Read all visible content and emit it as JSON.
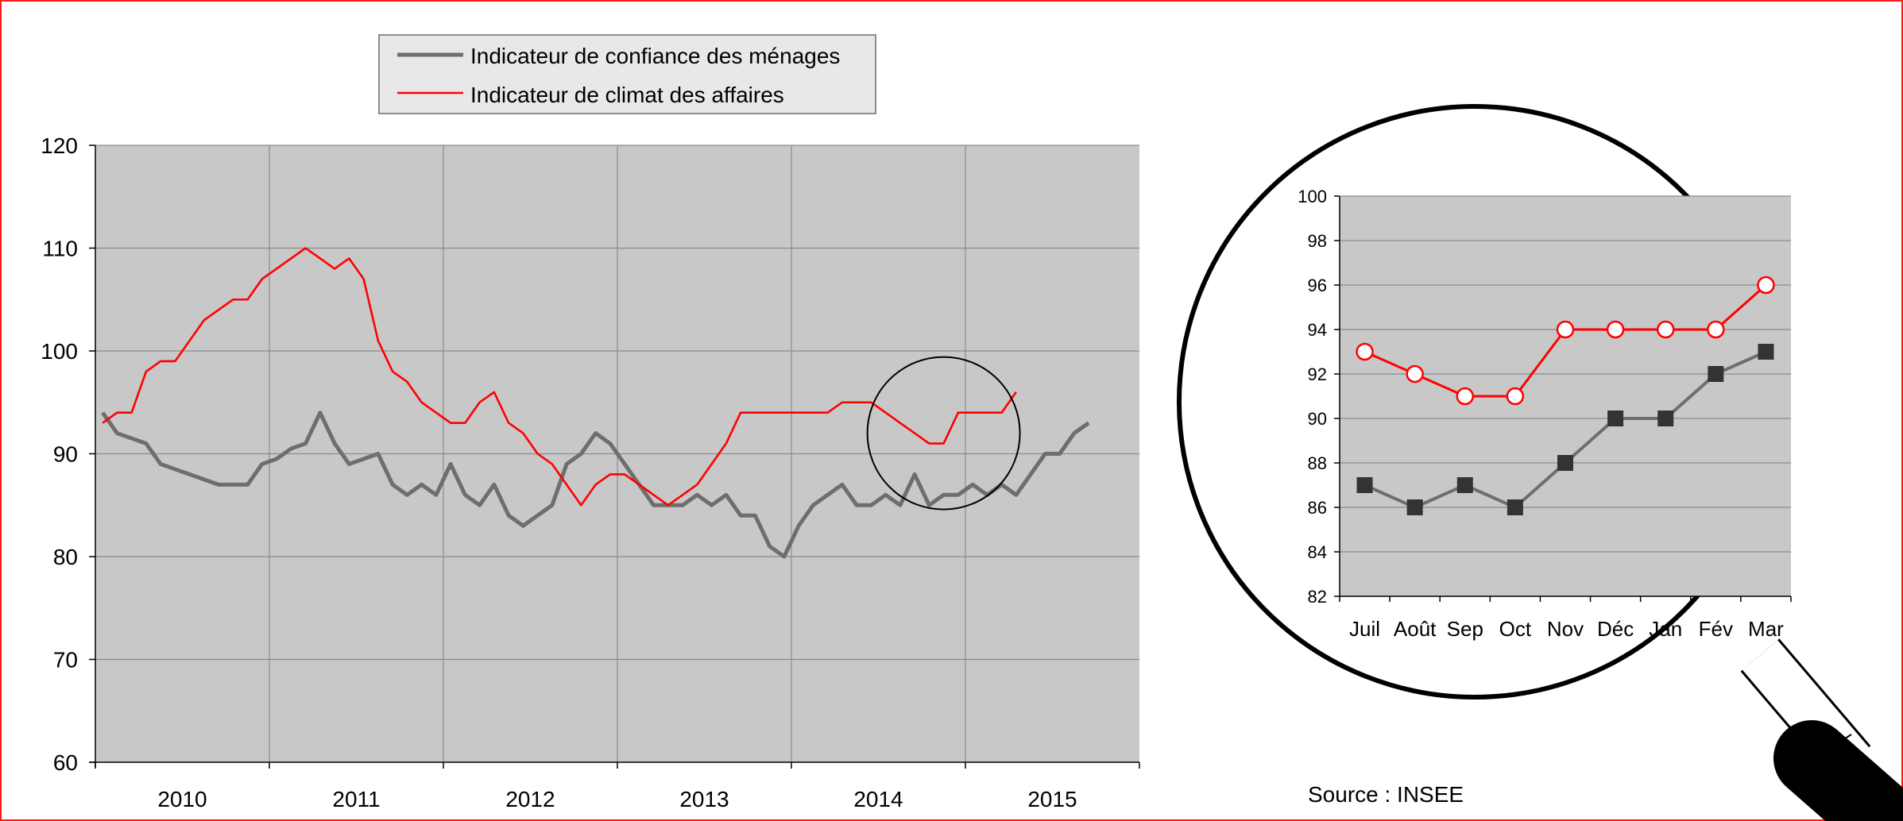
{
  "colors": {
    "frame": "#ff1a1a",
    "plot_bg": "#c8c8c8",
    "grid": "#8c8c8c",
    "menages": "#6e6e6e",
    "affaires": "#ff0000",
    "marker_square": "#333333"
  },
  "source_note": "Source : INSEE",
  "chart_data": [
    {
      "type": "line",
      "title": "",
      "xlabel": "",
      "ylabel": "",
      "ylim": [
        60,
        120
      ],
      "yticks": [
        60,
        70,
        80,
        90,
        100,
        110,
        120
      ],
      "year_labels": [
        "2010",
        "2011",
        "2012",
        "2013",
        "2014",
        "2015"
      ],
      "grid": true,
      "legend_position": "top-center",
      "x_start": "2009-10",
      "highlight_circle": {
        "x_month": 58,
        "y": 92
      },
      "series": [
        {
          "name": "Indicateur de confiance des ménages",
          "color_key": "menages",
          "values": [
            94,
            92,
            91.5,
            91,
            89,
            88.5,
            88,
            87.5,
            87,
            87,
            87,
            89,
            89.5,
            90.5,
            91,
            94,
            91,
            89,
            89.5,
            90,
            87,
            86,
            87,
            86,
            89,
            86,
            85,
            87,
            84,
            83,
            84,
            85,
            89,
            90,
            92,
            91,
            89,
            87,
            85,
            85,
            85,
            86,
            85,
            86,
            84,
            84,
            81,
            80,
            83,
            85,
            86,
            87,
            85,
            85,
            86,
            85,
            88,
            85,
            86,
            86,
            87,
            86,
            87,
            86,
            88,
            90,
            90,
            92,
            93
          ]
        },
        {
          "name": "Indicateur de climat des affaires",
          "color_key": "affaires",
          "values": [
            93,
            94,
            94,
            98,
            99,
            99,
            101,
            103,
            104,
            105,
            105,
            107,
            108,
            109,
            110,
            109,
            108,
            109,
            107,
            101,
            98,
            97,
            95,
            94,
            93,
            93,
            95,
            96,
            93,
            92,
            90,
            89,
            87,
            85,
            87,
            88,
            88,
            87,
            86,
            85,
            86,
            87,
            89,
            91,
            94,
            94,
            94,
            94,
            94,
            94,
            94,
            95,
            95,
            95,
            94,
            93,
            92,
            91,
            91,
            94,
            94,
            94,
            94,
            96
          ]
        }
      ]
    },
    {
      "type": "line",
      "title": "",
      "xlabel": "",
      "ylabel": "",
      "ylim": [
        82,
        100
      ],
      "yticks": [
        82,
        84,
        86,
        88,
        90,
        92,
        94,
        96,
        98,
        100
      ],
      "categories": [
        "Juil",
        "Août",
        "Sep",
        "Oct",
        "Nov",
        "Déc",
        "Jan",
        "Fév",
        "Mar"
      ],
      "grid": true,
      "series": [
        {
          "name": "Indicateur de confiance des ménages",
          "color_key": "menages",
          "marker": "square",
          "values": [
            87,
            86,
            87,
            86,
            88,
            90,
            90,
            92,
            93
          ]
        },
        {
          "name": "Indicateur de climat des affaires",
          "color_key": "affaires",
          "marker": "circle",
          "values": [
            93,
            92,
            91,
            91,
            94,
            94,
            94,
            94,
            96
          ]
        }
      ]
    }
  ]
}
